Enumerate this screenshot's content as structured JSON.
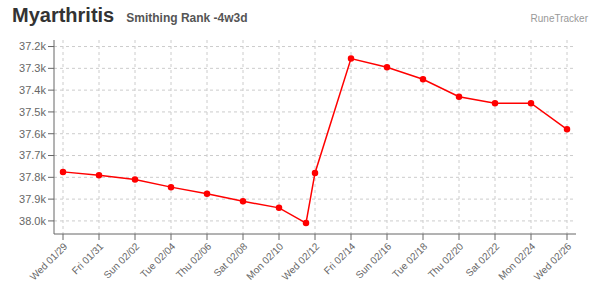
{
  "chart_data": {
    "type": "line",
    "title": "Myarthritis",
    "subtitle": "Smithing Rank -4w3d",
    "annotations": [
      {
        "text": "RuneTracker"
      }
    ],
    "x": [
      0,
      2,
      4,
      6,
      8,
      10,
      12,
      13.5,
      14,
      16,
      18,
      20,
      22,
      24,
      26,
      28
    ],
    "values": [
      37775,
      37790,
      37810,
      37845,
      37875,
      37910,
      37940,
      38010,
      37780,
      37255,
      37295,
      37350,
      37430,
      37460,
      37460,
      37580
    ],
    "color": "#ff0000",
    "marker": "circle",
    "xlim": [
      -0.5,
      28.5
    ],
    "xticks": [
      {
        "value": 0,
        "label": "Wed 01/29"
      },
      {
        "value": 2,
        "label": "Fri 01/31"
      },
      {
        "value": 4,
        "label": "Sun 02/02"
      },
      {
        "value": 6,
        "label": "Tue 02/04"
      },
      {
        "value": 8,
        "label": "Thu 02/06"
      },
      {
        "value": 10,
        "label": "Sat 02/08"
      },
      {
        "value": 12,
        "label": "Mon 02/10"
      },
      {
        "value": 14,
        "label": "Wed 02/12"
      },
      {
        "value": 16,
        "label": "Fri 02/14"
      },
      {
        "value": 18,
        "label": "Sun 02/16"
      },
      {
        "value": 20,
        "label": "Tue 02/18"
      },
      {
        "value": 22,
        "label": "Thu 02/20"
      },
      {
        "value": 24,
        "label": "Sat 02/22"
      },
      {
        "value": 26,
        "label": "Mon 02/24"
      },
      {
        "value": 28,
        "label": "Wed 02/26"
      }
    ],
    "ylim": [
      38060,
      37170
    ],
    "yticks": [
      {
        "value": 37200,
        "label": "37.2k"
      },
      {
        "value": 37300,
        "label": "37.3k"
      },
      {
        "value": 37400,
        "label": "37.4k"
      },
      {
        "value": 37500,
        "label": "37.5k"
      },
      {
        "value": 37600,
        "label": "37.6k"
      },
      {
        "value": 37700,
        "label": "37.7k"
      },
      {
        "value": 37800,
        "label": "37.8k"
      },
      {
        "value": 37900,
        "label": "37.9k"
      },
      {
        "value": 38000,
        "label": "38.0k"
      }
    ],
    "grid": true
  }
}
